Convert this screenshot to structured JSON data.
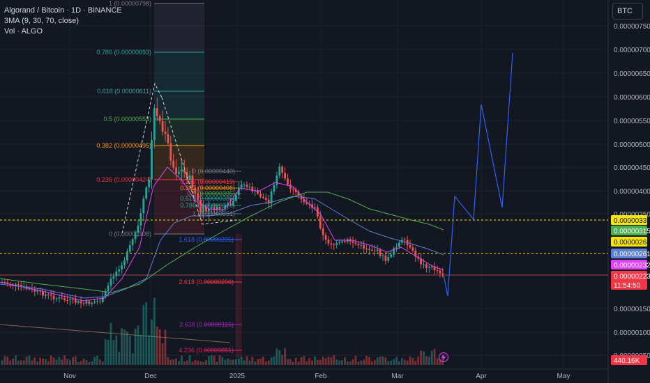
{
  "header": {
    "symbol_line": "Algorand / Bitcoin · 1D · BINANCE",
    "indicator_line": "3MA (9, 30, 70, close)",
    "volume_line": "Vol · ALGO",
    "currency": "BTC"
  },
  "colors": {
    "background": "#131722",
    "up": "#26a69a",
    "down": "#ef5350",
    "ma9": "#e040fb",
    "ma30": "#5b7fd6",
    "ma70": "#4caf50",
    "projection": "#2962ff",
    "dashed_level": "#f5e50a",
    "price_line": "#ef5350"
  },
  "chart_data": {
    "type": "candlestick",
    "title": "Algorand / Bitcoin · 1D · BINANCE",
    "y_unit": "BTC",
    "ylim": [
      2.2e-07,
      8.1e-07
    ],
    "y_ticks": [
      "0.00000750",
      "0.00000700",
      "0.00000650",
      "0.00000600",
      "0.00000550",
      "0.00000500",
      "0.00000450",
      "0.00000400",
      "0.00000350",
      "0.00000150",
      "0.00000100",
      "0.00000050"
    ],
    "x_ticks": [
      "Nov",
      "Dec",
      "2025",
      "Feb",
      "Mar",
      "Apr",
      "May"
    ],
    "approx_close_path": [
      [
        "2024-10-07",
        2.7e-06
      ],
      [
        "2024-10-14",
        2.62e-06
      ],
      [
        "2024-10-21",
        2.56e-06
      ],
      [
        "2024-10-28",
        2.5e-06
      ],
      [
        "2024-11-04",
        2.45e-06
      ],
      [
        "2024-11-11",
        2.5e-06
      ],
      [
        "2024-11-18",
        3e-06
      ],
      [
        "2024-11-25",
        4e-06
      ],
      [
        "2024-12-02",
        6e-06
      ],
      [
        "2024-12-09",
        5.1e-06
      ],
      [
        "2024-12-16",
        4.2e-06
      ],
      [
        "2024-12-23",
        3.7e-06
      ],
      [
        "2024-12-30",
        3.75e-06
      ],
      [
        "2025-01-06",
        4.3e-06
      ],
      [
        "2025-01-13",
        3.9e-06
      ],
      [
        "2025-01-20",
        4.4e-06
      ],
      [
        "2025-01-27",
        3.9e-06
      ],
      [
        "2025-02-03",
        3.2e-06
      ],
      [
        "2025-02-10",
        3.15e-06
      ],
      [
        "2025-02-17",
        3e-06
      ],
      [
        "2025-02-24",
        2.85e-06
      ],
      [
        "2025-03-03",
        3e-06
      ],
      [
        "2025-03-10",
        2.6e-06
      ],
      [
        "2025-03-17",
        2.23e-06
      ]
    ],
    "moving_averages": [
      {
        "name": "MA 9",
        "color": "#e040fb"
      },
      {
        "name": "MA 30",
        "color": "#5b7fd6"
      },
      {
        "name": "MA 70",
        "color": "#4caf50"
      }
    ],
    "fib_retracement_main": [
      {
        "label": "1 (0.00000798)",
        "color": "#787b86"
      },
      {
        "label": "0.786 (0.00000693)",
        "color": "#26a69a"
      },
      {
        "label": "0.618 (0.00000611)",
        "color": "#26a69a"
      },
      {
        "label": "0.5 (0.00000553)",
        "color": "#4caf50"
      },
      {
        "label": "0.382 (0.00000495)",
        "color": "#ff9800"
      },
      {
        "label": "0.236 (0.00000424)",
        "color": "#f23645"
      },
      {
        "label": "0 (0.00000308)",
        "color": "#787b86"
      }
    ],
    "fib_retracement_second": [
      {
        "label": "0 (0.00000440)",
        "color": "#787b86"
      },
      {
        "label": "0.236 (0.00000419)",
        "color": "#f23645"
      },
      {
        "label": "0.382 (0.00000406)",
        "color": "#ff9800"
      },
      {
        "label": "0.5 (0.00000395)",
        "color": "#4caf50"
      },
      {
        "label": "0.618 (0.00000385)",
        "color": "#26a69a"
      },
      {
        "label": "0.786 (0.00000370)",
        "color": "#26a69a"
      },
      {
        "label": "1 (0.00000351)",
        "color": "#787b86"
      }
    ],
    "fib_extension": [
      {
        "label": "1.618 (0.00000295)",
        "color": "#2962ff"
      },
      {
        "label": "2.618 (0.00000206)",
        "color": "#f23645"
      },
      {
        "label": "3.618 (0.00000116)",
        "color": "#9c27b0"
      },
      {
        "label": "4.236 (0.00000061)",
        "color": "#e91e63"
      }
    ],
    "projection_path_note": "blue zig-zag projection drawn into Mar–Apr",
    "price_badges": [
      {
        "text": "0.00000337",
        "bg": "#f5e50a",
        "fg": "#131722"
      },
      {
        "text": "0.00000315",
        "bg": "#4caf50",
        "fg": "#ffffff"
      },
      {
        "text": "0.00000268",
        "bg": "#f5e50a",
        "fg": "#131722"
      },
      {
        "text": "0.00000261",
        "bg": "#5b7fd6",
        "fg": "#ffffff"
      },
      {
        "text": "0.00000232",
        "bg": "#e040fb",
        "fg": "#ffffff"
      },
      {
        "text": "0.00000223",
        "bg": "#f23645",
        "fg": "#ffffff"
      },
      {
        "text": "11:54:50",
        "bg": "#f23645",
        "fg": "#ffffff"
      },
      {
        "text": "440.16K",
        "bg": "#f23645",
        "fg": "#ffffff"
      }
    ]
  }
}
